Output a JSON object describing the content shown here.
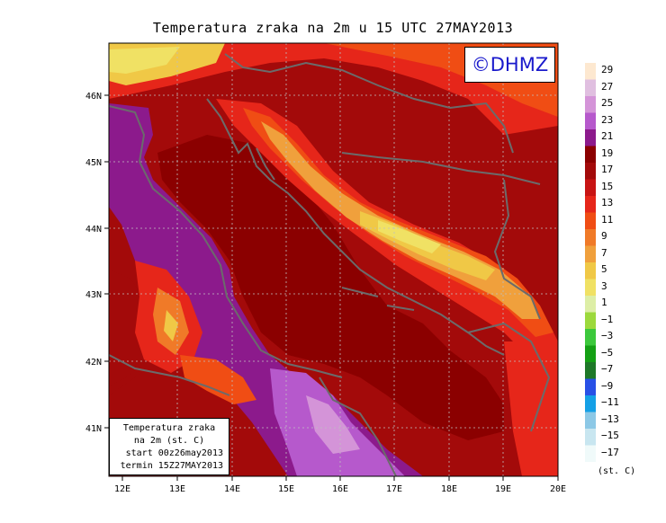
{
  "title": "Temperatura zraka na 2m u 15 UTC 27MAY2013",
  "watermark": "©DHMZ",
  "info_box": {
    "line1": "Temperatura zraka",
    "line2": "na 2m (st. C)",
    "line3": "start 00z26may2013",
    "line4": "termin 15Z27MAY2013"
  },
  "lon_ticks": [
    "12E",
    "13E",
    "14E",
    "15E",
    "16E",
    "17E",
    "18E",
    "19E",
    "20E"
  ],
  "lat_ticks": [
    "46N",
    "45N",
    "44N",
    "43N",
    "42N",
    "41N"
  ],
  "legend": {
    "unit": "(st. C)",
    "labels": [
      "29",
      "27",
      "25",
      "23",
      "21",
      "19",
      "17",
      "15",
      "13",
      "11",
      "9",
      "7",
      "5",
      "3",
      "1",
      "−1",
      "−3",
      "−5",
      "−7",
      "−9",
      "−11",
      "−13",
      "−15",
      "−17"
    ],
    "colors": [
      "#fde8d0",
      "#e0bfe0",
      "#d494d8",
      "#b659cc",
      "#8c1a8c",
      "#8b0000",
      "#a30a0a",
      "#c81414",
      "#e6261a",
      "#f04d14",
      "#f07a28",
      "#f0a03c",
      "#f0c846",
      "#f0e164",
      "#ddeea6",
      "#9cd93c",
      "#3cc83c",
      "#14a014",
      "#1e7828",
      "#2850e6",
      "#14a0e6",
      "#8cc8e6",
      "#c8e6f0",
      "#f0fafa"
    ]
  },
  "colors": {
    "coast": "#6b6b6b",
    "grid": "#c0c0c0",
    "sea_cold": "#8c1a8c",
    "sea_deep": "#6e1078",
    "warm_base": "#a30a0a"
  }
}
